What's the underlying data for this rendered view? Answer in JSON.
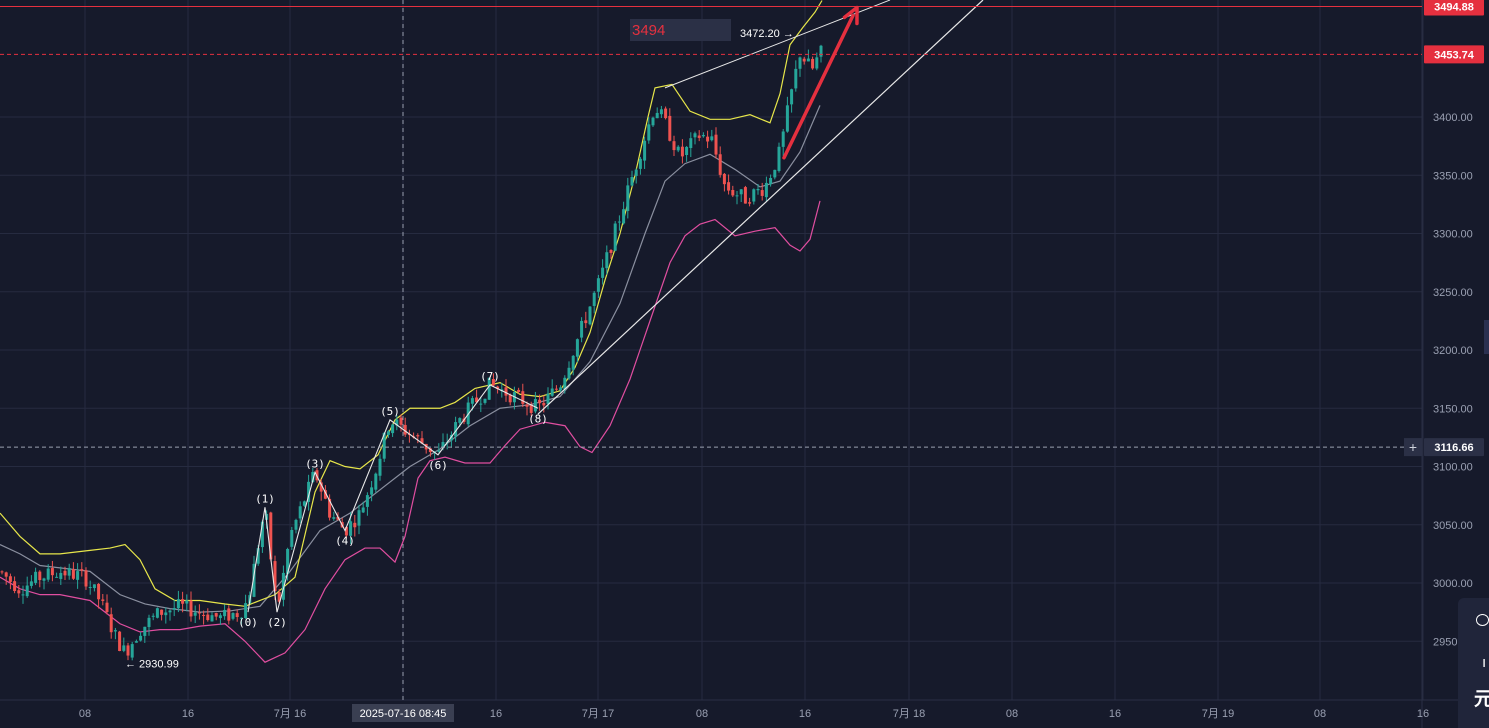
{
  "chart_data": {
    "type": "candlestick",
    "title": "",
    "x_axis": {
      "tick_labels": [
        "08",
        "16",
        "7月 16",
        "2025-07-16 08:45",
        "16",
        "7月 17",
        "08",
        "16",
        "7月 18",
        "08",
        "16",
        "7月 19",
        "08",
        "16"
      ],
      "crosshair_label": "2025-07-16 08:45"
    },
    "y_axis": {
      "range": [
        2910,
        3505
      ],
      "tick_values": [
        2950,
        3000,
        3050,
        3100,
        3150,
        3200,
        3250,
        3300,
        3350,
        3400
      ],
      "tick_labels": [
        "2950.00",
        "3000.00",
        "3050.00",
        "3100.00",
        "3150.00",
        "3200.00",
        "3250.00",
        "3300.00",
        "3350.00",
        "3400.00"
      ]
    },
    "price_tags": [
      {
        "value": 3494.88,
        "label": "3494.88",
        "color": "#e5303f"
      },
      {
        "value": 3453.74,
        "label": "3453.74",
        "color": "#e5303f"
      },
      {
        "value": 3116.66,
        "label": "3116.66",
        "color": "#2b3046"
      }
    ],
    "horizontal_lines": [
      {
        "value": 3494.88,
        "style": "solid",
        "color": "#e5303f"
      },
      {
        "value": 3453.74,
        "style": "dashed",
        "color": "#e5303f"
      },
      {
        "value": 3116.66,
        "style": "dashed",
        "color": "#9aa0b0"
      }
    ],
    "price_path": [
      [
        0,
        3010
      ],
      [
        20,
        2995
      ],
      [
        40,
        3005
      ],
      [
        60,
        3010
      ],
      [
        85,
        3005
      ],
      [
        100,
        2985
      ],
      [
        115,
        2955
      ],
      [
        125,
        2940
      ],
      [
        140,
        2960
      ],
      [
        160,
        2975
      ],
      [
        180,
        2980
      ],
      [
        200,
        2975
      ],
      [
        220,
        2970
      ],
      [
        240,
        2975
      ],
      [
        248,
        2985
      ],
      [
        265,
        3065
      ],
      [
        277,
        2975
      ],
      [
        290,
        3040
      ],
      [
        315,
        3095
      ],
      [
        330,
        3060
      ],
      [
        345,
        3045
      ],
      [
        360,
        3060
      ],
      [
        375,
        3095
      ],
      [
        390,
        3140
      ],
      [
        415,
        3125
      ],
      [
        438,
        3110
      ],
      [
        460,
        3140
      ],
      [
        490,
        3170
      ],
      [
        515,
        3160
      ],
      [
        538,
        3150
      ],
      [
        560,
        3170
      ],
      [
        580,
        3215
      ],
      [
        600,
        3260
      ],
      [
        620,
        3315
      ],
      [
        640,
        3370
      ],
      [
        655,
        3410
      ],
      [
        665,
        3395
      ],
      [
        680,
        3365
      ],
      [
        700,
        3385
      ],
      [
        712,
        3380
      ],
      [
        725,
        3340
      ],
      [
        745,
        3330
      ],
      [
        765,
        3340
      ],
      [
        780,
        3370
      ],
      [
        790,
        3415
      ],
      [
        800,
        3455
      ],
      [
        812,
        3440
      ],
      [
        820,
        3455
      ]
    ],
    "bollinger_upper": [
      [
        0,
        3060
      ],
      [
        20,
        3040
      ],
      [
        40,
        3025
      ],
      [
        60,
        3025
      ],
      [
        90,
        3028
      ],
      [
        110,
        3030
      ],
      [
        125,
        3033
      ],
      [
        140,
        3020
      ],
      [
        155,
        2995
      ],
      [
        175,
        2985
      ],
      [
        200,
        2985
      ],
      [
        225,
        2982
      ],
      [
        245,
        2980
      ],
      [
        260,
        2985
      ],
      [
        275,
        2990
      ],
      [
        295,
        3005
      ],
      [
        315,
        3078
      ],
      [
        330,
        3105
      ],
      [
        345,
        3100
      ],
      [
        360,
        3098
      ],
      [
        378,
        3110
      ],
      [
        395,
        3140
      ],
      [
        410,
        3150
      ],
      [
        425,
        3150
      ],
      [
        440,
        3150
      ],
      [
        455,
        3155
      ],
      [
        475,
        3167
      ],
      [
        500,
        3172
      ],
      [
        520,
        3162
      ],
      [
        540,
        3160
      ],
      [
        560,
        3165
      ],
      [
        575,
        3185
      ],
      [
        590,
        3215
      ],
      [
        605,
        3260
      ],
      [
        620,
        3300
      ],
      [
        635,
        3350
      ],
      [
        648,
        3400
      ],
      [
        655,
        3425
      ],
      [
        672,
        3428
      ],
      [
        690,
        3405
      ],
      [
        710,
        3398
      ],
      [
        730,
        3398
      ],
      [
        750,
        3402
      ],
      [
        770,
        3395
      ],
      [
        780,
        3420
      ],
      [
        790,
        3462
      ],
      [
        803,
        3477
      ],
      [
        815,
        3490
      ],
      [
        822,
        3500
      ]
    ],
    "bollinger_middle": [
      [
        0,
        3033
      ],
      [
        20,
        3025
      ],
      [
        40,
        3015
      ],
      [
        60,
        3013
      ],
      [
        90,
        3010
      ],
      [
        120,
        2990
      ],
      [
        145,
        2982
      ],
      [
        170,
        2978
      ],
      [
        200,
        2975
      ],
      [
        230,
        2976
      ],
      [
        260,
        2980
      ],
      [
        290,
        3010
      ],
      [
        320,
        3045
      ],
      [
        350,
        3060
      ],
      [
        380,
        3080
      ],
      [
        410,
        3100
      ],
      [
        440,
        3115
      ],
      [
        470,
        3135
      ],
      [
        500,
        3150
      ],
      [
        530,
        3153
      ],
      [
        560,
        3160
      ],
      [
        590,
        3190
      ],
      [
        620,
        3240
      ],
      [
        645,
        3300
      ],
      [
        665,
        3345
      ],
      [
        685,
        3360
      ],
      [
        710,
        3368
      ],
      [
        735,
        3355
      ],
      [
        760,
        3340
      ],
      [
        780,
        3345
      ],
      [
        800,
        3370
      ],
      [
        820,
        3410
      ]
    ],
    "bollinger_lower": [
      [
        0,
        3005
      ],
      [
        20,
        2995
      ],
      [
        40,
        2990
      ],
      [
        60,
        2990
      ],
      [
        90,
        2985
      ],
      [
        120,
        2965
      ],
      [
        140,
        2958
      ],
      [
        160,
        2960
      ],
      [
        180,
        2960
      ],
      [
        200,
        2963
      ],
      [
        225,
        2965
      ],
      [
        245,
        2950
      ],
      [
        265,
        2932
      ],
      [
        285,
        2940
      ],
      [
        305,
        2960
      ],
      [
        325,
        2995
      ],
      [
        345,
        3020
      ],
      [
        365,
        3030
      ],
      [
        380,
        3030
      ],
      [
        395,
        3018
      ],
      [
        405,
        3040
      ],
      [
        418,
        3090
      ],
      [
        430,
        3105
      ],
      [
        445,
        3108
      ],
      [
        465,
        3103
      ],
      [
        490,
        3103
      ],
      [
        505,
        3118
      ],
      [
        520,
        3132
      ],
      [
        545,
        3138
      ],
      [
        565,
        3135
      ],
      [
        580,
        3117
      ],
      [
        592,
        3112
      ],
      [
        610,
        3135
      ],
      [
        630,
        3175
      ],
      [
        650,
        3225
      ],
      [
        670,
        3275
      ],
      [
        685,
        3298
      ],
      [
        700,
        3308
      ],
      [
        715,
        3312
      ],
      [
        735,
        3298
      ],
      [
        755,
        3302
      ],
      [
        775,
        3305
      ],
      [
        790,
        3290
      ],
      [
        800,
        3285
      ],
      [
        810,
        3295
      ],
      [
        820,
        3328
      ]
    ],
    "wave_labels": [
      {
        "label": "(0)",
        "x": 248,
        "value": 2975
      },
      {
        "label": "(1)",
        "x": 265,
        "value": 3065
      },
      {
        "label": "(2)",
        "x": 277,
        "value": 2975
      },
      {
        "label": "(3)",
        "x": 315,
        "value": 3095
      },
      {
        "label": "(4)",
        "x": 345,
        "value": 3045
      },
      {
        "label": "(5)",
        "x": 390,
        "value": 3140
      },
      {
        "label": "(6)",
        "x": 438,
        "value": 3110
      },
      {
        "label": "(7)",
        "x": 490,
        "value": 3170
      },
      {
        "label": "(8)",
        "x": 538,
        "value": 3150
      }
    ],
    "annotations": [
      {
        "label": "← 2930.99",
        "value": 2930.99
      },
      {
        "label": "3472.20 →",
        "value": 3472.2
      }
    ],
    "target_label": "3494"
  },
  "colors": {
    "background": "#161a2b",
    "grid": "#262b40",
    "up_candle": "#26a69a",
    "down_candle": "#ef5350",
    "boll_upper": "#e7e64a",
    "boll_middle": "#8a8f9f",
    "boll_lower": "#e04ea0",
    "arrow": "#e5303f",
    "axis_text": "#9aa0b2"
  },
  "side_widget": {
    "icon": "camera-eye-icon",
    "line1": "ı",
    "line2": "元"
  }
}
